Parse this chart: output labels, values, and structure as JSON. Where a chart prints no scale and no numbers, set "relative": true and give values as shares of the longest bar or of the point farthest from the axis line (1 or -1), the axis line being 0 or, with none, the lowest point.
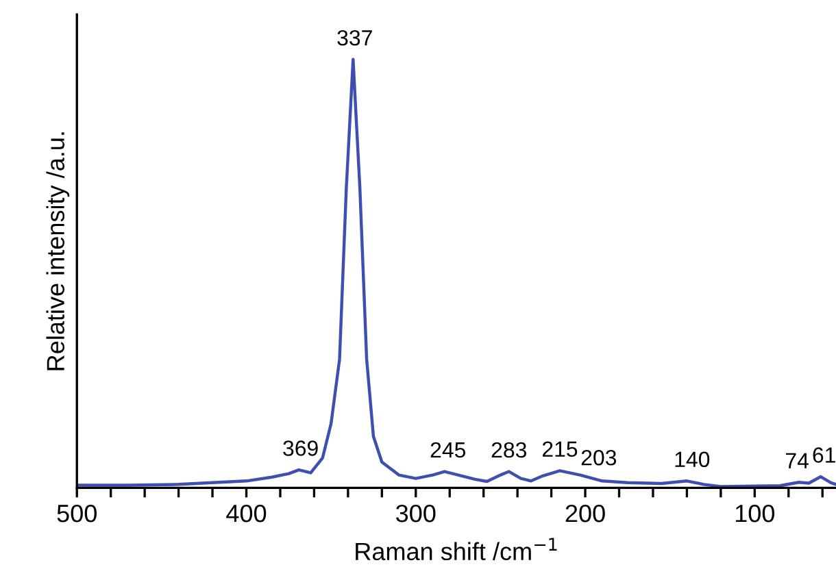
{
  "chart_data": {
    "type": "line",
    "relative": true,
    "xlabel": "Raman shift /cm$^{−1}$",
    "ylabel": "Relative intensity /a.u.",
    "x": [
      500,
      470,
      440,
      420,
      400,
      385,
      375,
      369,
      362,
      355,
      350,
      345,
      341,
      337,
      333,
      329,
      325,
      320,
      310,
      300,
      290,
      283,
      275,
      265,
      258,
      250,
      245,
      238,
      232,
      225,
      215,
      203,
      190,
      175,
      155,
      140,
      130,
      120,
      100,
      85,
      74,
      68,
      61,
      55,
      52
    ],
    "series": [
      {
        "color": "#3f4fb0",
        "values": [
          0.006,
          0.006,
          0.008,
          0.012,
          0.016,
          0.025,
          0.033,
          0.042,
          0.035,
          0.07,
          0.15,
          0.3,
          0.7,
          1.0,
          0.7,
          0.3,
          0.12,
          0.06,
          0.03,
          0.022,
          0.03,
          0.038,
          0.03,
          0.02,
          0.015,
          0.03,
          0.038,
          0.022,
          0.016,
          0.028,
          0.04,
          0.03,
          0.016,
          0.012,
          0.01,
          0.016,
          0.008,
          0.003,
          0.004,
          0.005,
          0.013,
          0.011,
          0.026,
          0.012,
          0.008
        ]
      }
    ],
    "xlim": [
      500,
      52
    ],
    "xticks": [
      500,
      {
        "value": 480,
        "label": null
      },
      {
        "value": 460,
        "label": null
      },
      {
        "value": 440,
        "label": null
      },
      {
        "value": 420,
        "label": null
      },
      400,
      {
        "value": 380,
        "label": null
      },
      {
        "value": 360,
        "label": null
      },
      {
        "value": 340,
        "label": null
      },
      {
        "value": 320,
        "label": null
      },
      300,
      {
        "value": 280,
        "label": null
      },
      {
        "value": 260,
        "label": null
      },
      {
        "value": 240,
        "label": null
      },
      {
        "value": 220,
        "label": null
      },
      200,
      {
        "value": 180,
        "label": null
      },
      {
        "value": 160,
        "label": null
      },
      {
        "value": 140,
        "label": null
      },
      {
        "value": 120,
        "label": null
      },
      100,
      {
        "value": 80,
        "label": null
      },
      {
        "value": 60,
        "label": null
      }
    ],
    "annotations": [
      {
        "text": "369",
        "x": 368,
        "y": 0.042
      },
      {
        "text": "337",
        "x": 336,
        "y": 1.0
      },
      {
        "text": "245",
        "x": 281,
        "y": 0.038
      },
      {
        "text": "283",
        "x": 245,
        "y": 0.038
      },
      {
        "text": "215",
        "x": 215,
        "y": 0.04
      },
      {
        "text": "203",
        "x": 192,
        "y": 0.02
      },
      {
        "text": "140",
        "x": 137,
        "y": 0.016
      },
      {
        "text": "74",
        "x": 75,
        "y": 0.013
      },
      {
        "text": "61",
        "x": 59,
        "y": 0.026
      }
    ]
  }
}
